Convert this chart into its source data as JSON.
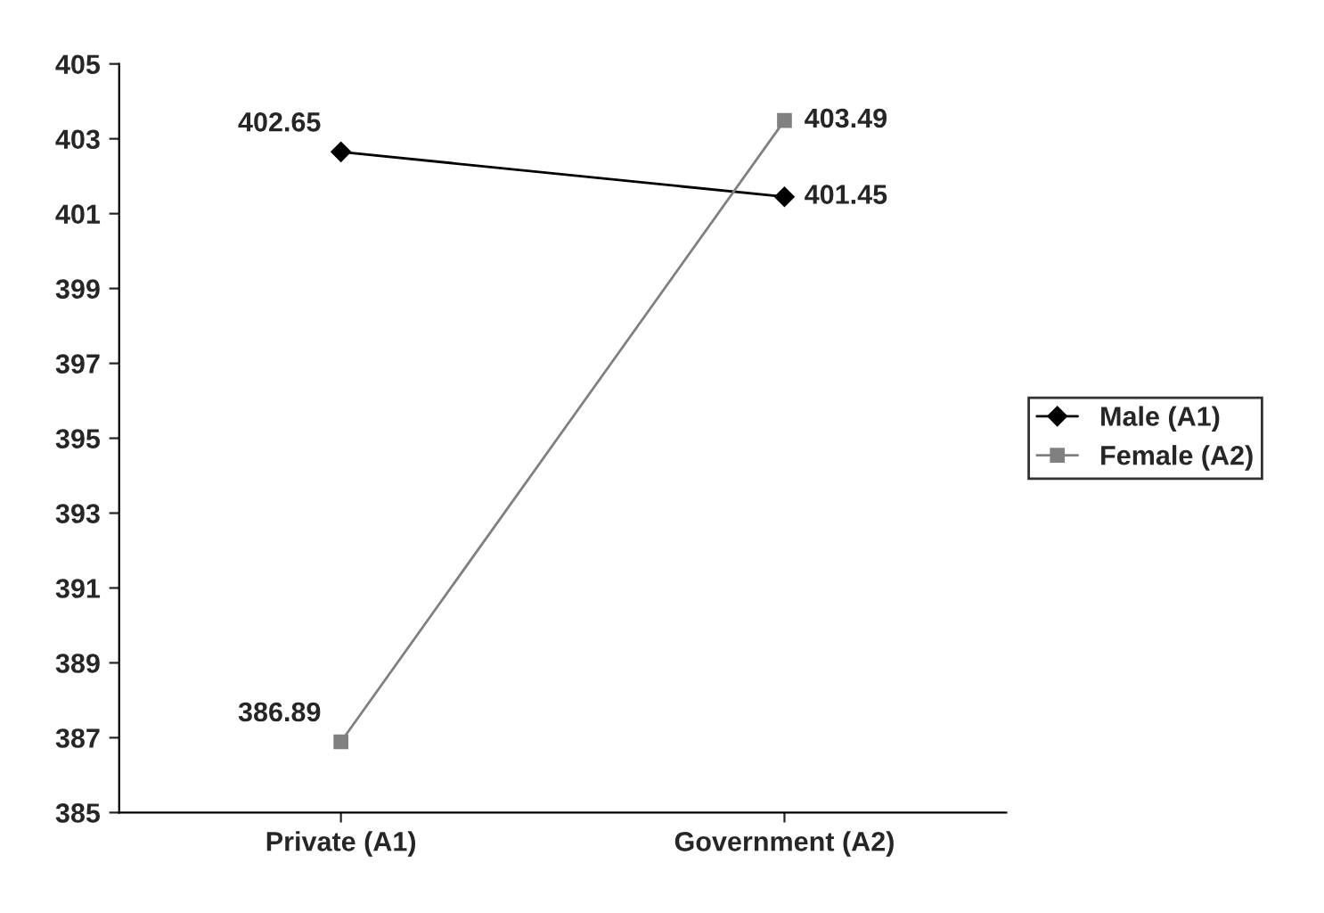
{
  "chart_data": {
    "type": "line",
    "categories": [
      "Private (A1)",
      "Government (A2)"
    ],
    "series": [
      {
        "name": "Male (A1)",
        "color": "#000000",
        "marker": "diamond",
        "values": [
          402.65,
          401.45
        ]
      },
      {
        "name": "Female (A2)",
        "color": "#808080",
        "marker": "square",
        "values": [
          386.89,
          403.49
        ]
      }
    ],
    "ylim": [
      385,
      405
    ],
    "yticks": [
      385,
      387,
      389,
      391,
      393,
      395,
      397,
      399,
      401,
      403,
      405
    ],
    "data_labels": true,
    "grid": false,
    "legend": "right"
  }
}
